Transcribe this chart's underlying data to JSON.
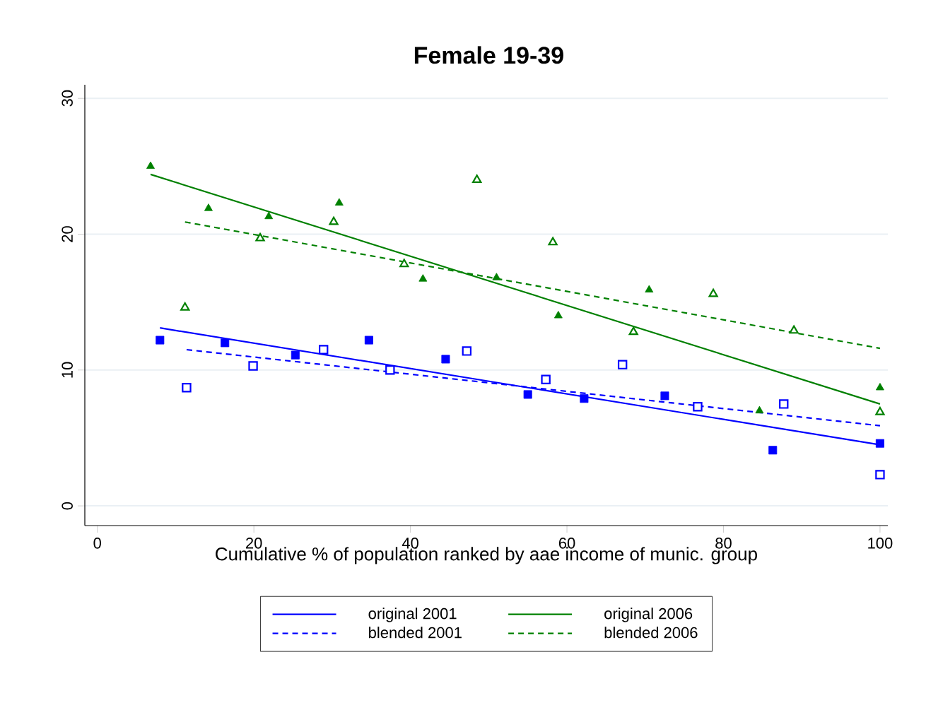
{
  "chart_data": {
    "type": "scatter",
    "title": "Female 19-39",
    "xlabel": "Cumulative % of population ranked by aae income of munic. group",
    "xlim": [
      -1.6,
      101
    ],
    "ylim": [
      -1.45,
      31
    ],
    "xticks": [
      0,
      20,
      40,
      60,
      80,
      100
    ],
    "yticks": [
      0,
      10,
      20,
      30
    ],
    "grid": "y",
    "legend": "bottom",
    "series": [
      {
        "marker": "square",
        "color": "#0000ff",
        "x": [
          8.0,
          16.3,
          25.3,
          34.7,
          44.5,
          55.0,
          62.2,
          72.5,
          86.3,
          100
        ],
        "values": [
          12.2,
          12.0,
          11.1,
          12.2,
          10.8,
          8.2,
          7.9,
          8.1,
          4.1,
          4.6
        ]
      },
      {
        "marker": "square",
        "color": "#0000ff",
        "x": [
          11.4,
          19.9,
          28.9,
          37.4,
          47.2,
          57.3,
          67.1,
          76.7,
          87.7,
          100
        ],
        "values": [
          8.7,
          10.3,
          11.5,
          10.0,
          11.4,
          9.3,
          10.4,
          7.3,
          7.5,
          2.3
        ]
      },
      {
        "marker": "triangle",
        "color": "#008000",
        "x": [
          6.8,
          14.2,
          21.9,
          30.9,
          41.6,
          51.0,
          58.9,
          70.5,
          84.6,
          100
        ],
        "values": [
          25.0,
          21.9,
          21.3,
          22.3,
          16.7,
          16.8,
          14.0,
          15.9,
          7.0,
          8.7
        ]
      },
      {
        "marker": "triangle",
        "color": "#008000",
        "x": [
          11.2,
          20.8,
          30.2,
          39.2,
          48.5,
          58.2,
          68.5,
          78.7,
          89.0,
          100
        ],
        "values": [
          14.6,
          19.7,
          20.9,
          17.8,
          24.0,
          19.4,
          12.8,
          15.6,
          12.9,
          6.9
        ]
      },
      {
        "type": "line",
        "name": "original  2001",
        "line_style": "solid",
        "color": "#0000ff",
        "x": [
          8.0,
          100
        ],
        "values": [
          13.1,
          4.5
        ]
      },
      {
        "type": "line",
        "name": "original  2006",
        "line_style": "solid",
        "color": "#008000",
        "x": [
          6.8,
          100
        ],
        "values": [
          24.4,
          7.5
        ]
      },
      {
        "type": "line",
        "name": "blended 2001",
        "line_style": "dashed",
        "color": "#0000ff",
        "x": [
          11.4,
          100
        ],
        "values": [
          11.5,
          5.9
        ]
      },
      {
        "type": "line",
        "name": "blended 2006",
        "line_style": "dashed",
        "color": "#008000",
        "x": [
          11.2,
          100
        ],
        "values": [
          20.9,
          11.6
        ]
      }
    ]
  }
}
